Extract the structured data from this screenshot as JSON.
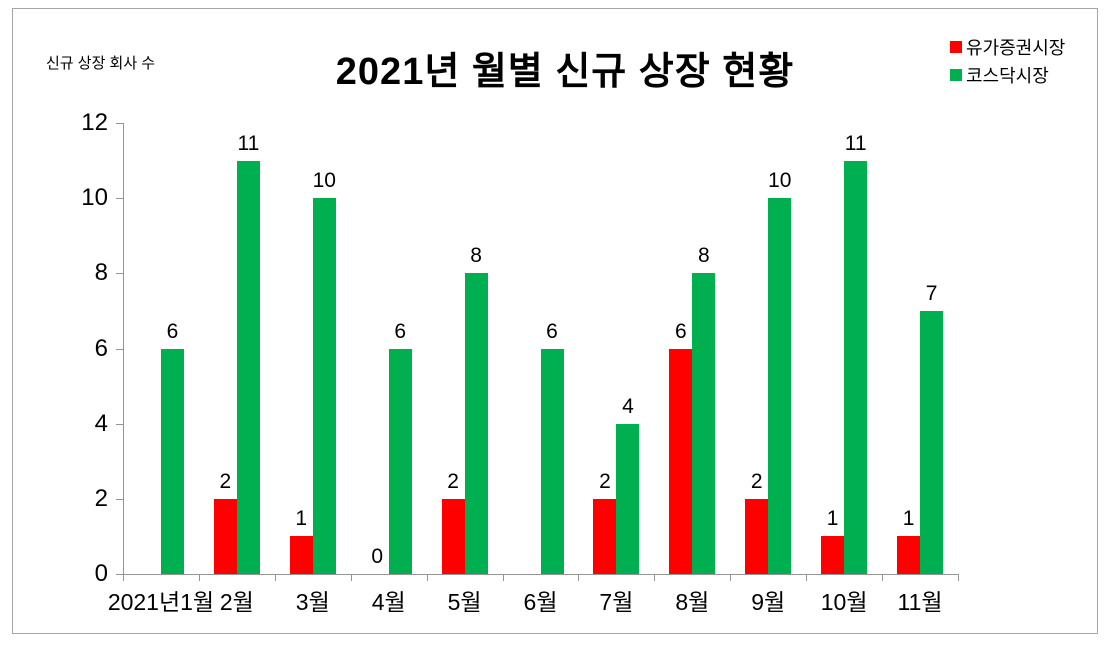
{
  "page": {
    "background": "#ffffff",
    "frame_border_color": "#a6a6a6"
  },
  "chart": {
    "title": "2021년 월별 신규 상장 현황",
    "y_unit_label": "신규 상장 회사 수",
    "legend": [
      {
        "label": "유가증권시장",
        "color": "#ff0000"
      },
      {
        "label": "코스닥시장",
        "color": "#00b050"
      }
    ]
  },
  "chart_data": {
    "type": "bar",
    "title": "2021년 월별 신규 상장 현황",
    "ylabel": "신규 상장 회사 수",
    "xlabel": "",
    "categories": [
      "2021년1월",
      "2월",
      "3월",
      "4월",
      "5월",
      "6월",
      "7월",
      "8월",
      "9월",
      "10월",
      "11월"
    ],
    "series": [
      {
        "name": "유가증권시장",
        "color": "#ff0000",
        "values": [
          null,
          2,
          1,
          0,
          2,
          null,
          2,
          6,
          2,
          1,
          1
        ],
        "data_labels": [
          "",
          "2",
          "1",
          "0",
          "2",
          "",
          "2",
          "6",
          "2",
          "1",
          "1"
        ]
      },
      {
        "name": "코스닥시장",
        "color": "#00b050",
        "values": [
          6,
          11,
          10,
          6,
          8,
          6,
          4,
          8,
          10,
          11,
          7
        ],
        "data_labels": [
          "6",
          "11",
          "10",
          "6",
          "8",
          "6",
          "4",
          "8",
          "10",
          "11",
          "7"
        ]
      }
    ],
    "ylim": [
      0,
      12
    ],
    "yticks": [
      0,
      2,
      4,
      6,
      8,
      10,
      12
    ],
    "grid": false,
    "legend_position": "top-right",
    "axis_color": "#949494",
    "text_color": "#000000"
  }
}
